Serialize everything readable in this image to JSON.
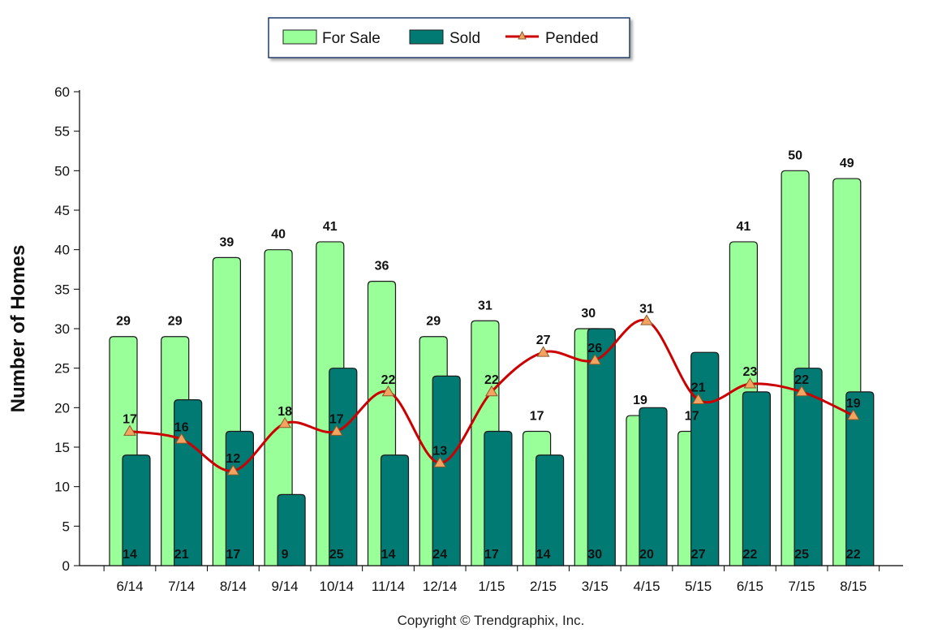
{
  "chart_data": {
    "type": "bar",
    "categories": [
      "6/14",
      "7/14",
      "8/14",
      "9/14",
      "10/14",
      "11/14",
      "12/14",
      "1/15",
      "2/15",
      "3/15",
      "4/15",
      "5/15",
      "6/15",
      "7/15",
      "8/15"
    ],
    "series": [
      {
        "name": "For Sale",
        "type": "bar",
        "color": "#99ff99",
        "values": [
          29,
          29,
          39,
          40,
          41,
          36,
          29,
          31,
          17,
          30,
          19,
          17,
          41,
          50,
          49
        ]
      },
      {
        "name": "Sold",
        "type": "bar",
        "color": "#007a73",
        "values": [
          14,
          21,
          17,
          9,
          25,
          14,
          24,
          17,
          14,
          30,
          20,
          27,
          22,
          25,
          22
        ]
      },
      {
        "name": "Pended",
        "type": "line",
        "color": "#cc0000",
        "marker_color": "#f4a460",
        "values": [
          17,
          16,
          12,
          18,
          17,
          22,
          13,
          22,
          27,
          26,
          31,
          21,
          23,
          22,
          19
        ]
      }
    ],
    "ylabel": "Number of Homes",
    "xlabel": "",
    "ylim": [
      0,
      60
    ],
    "yticks": [
      0,
      5,
      10,
      15,
      20,
      25,
      30,
      35,
      40,
      45,
      50,
      55,
      60
    ],
    "legend": "top-center",
    "grid": false
  },
  "copyright": "Copyright © Trendgraphix, Inc."
}
